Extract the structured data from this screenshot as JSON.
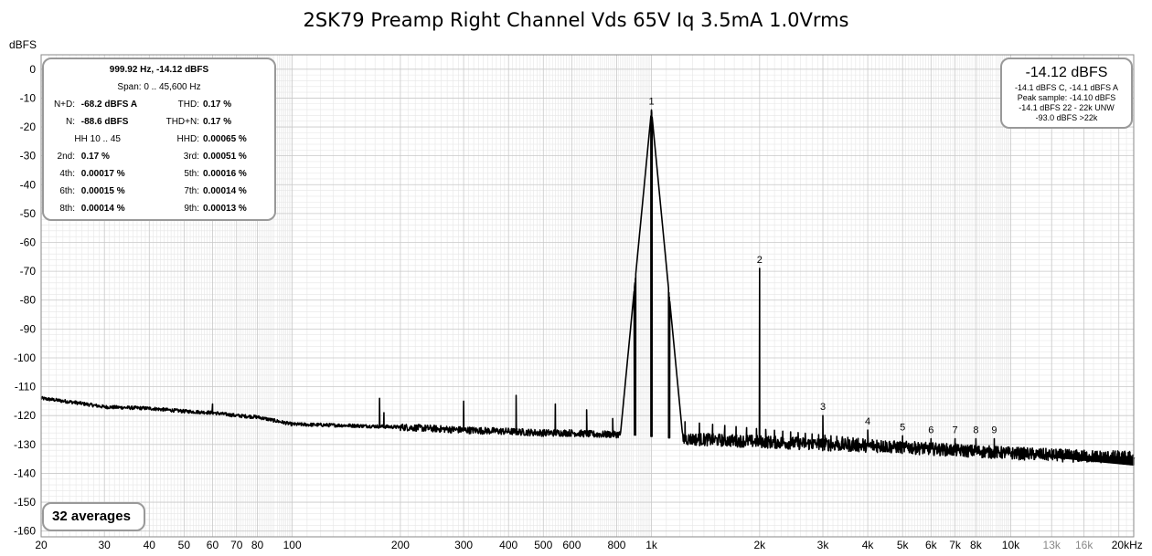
{
  "chart_data": {
    "type": "line",
    "title": "2SK79 Preamp Right Channel Vds 65V Iq 3.5mA 1.0Vrms",
    "ylabel": "dBFS",
    "xlabel": "",
    "xscale": "log",
    "xlim": [
      20,
      22000
    ],
    "ylim": [
      -162,
      5
    ],
    "grid": true,
    "y_ticks": [
      0,
      -10,
      -20,
      -30,
      -40,
      -50,
      -60,
      -70,
      -80,
      -90,
      -100,
      -110,
      -120,
      -130,
      -140,
      -150,
      -160
    ],
    "y_tick_labels": [
      "0",
      "-10",
      "-20",
      "-30",
      "-40",
      "-50",
      "-60",
      "-70",
      "-80",
      "-90",
      "-100",
      "-110",
      "-120",
      "-130",
      "-140",
      "-150",
      "-160"
    ],
    "x_ticks": [
      20,
      30,
      40,
      50,
      60,
      70,
      80,
      100,
      200,
      300,
      400,
      500,
      600,
      800,
      1000,
      2000,
      3000,
      4000,
      5000,
      6000,
      7000,
      8000,
      10000,
      13000,
      16000,
      20000
    ],
    "x_tick_labels": [
      "20",
      "30",
      "40",
      "50",
      "60",
      "70",
      "80",
      "100",
      "200",
      "300",
      "400",
      "500",
      "600",
      "800",
      "1k",
      "2k",
      "3k",
      "4k",
      "5k",
      "6k",
      "7k",
      "8k",
      "10k",
      "13k",
      "16k",
      "20kHz"
    ],
    "x_tick_gray": [
      "13k",
      "16k"
    ],
    "noise_floor": [
      [
        20,
        -114
      ],
      [
        25,
        -115.5
      ],
      [
        30,
        -117
      ],
      [
        40,
        -117.5
      ],
      [
        50,
        -118.5
      ],
      [
        60,
        -119
      ],
      [
        70,
        -120
      ],
      [
        80,
        -120.5
      ],
      [
        100,
        -123
      ],
      [
        150,
        -123.5
      ],
      [
        200,
        -124
      ],
      [
        300,
        -125
      ],
      [
        400,
        -125.5
      ],
      [
        500,
        -126
      ],
      [
        600,
        -126
      ],
      [
        700,
        -126.5
      ],
      [
        850,
        -126.5
      ],
      [
        1200,
        -128
      ],
      [
        2000,
        -129
      ],
      [
        3000,
        -130
      ],
      [
        4000,
        -130.5
      ],
      [
        5000,
        -131
      ],
      [
        7000,
        -132
      ],
      [
        10000,
        -133
      ],
      [
        15000,
        -134
      ],
      [
        22000,
        -134.5
      ]
    ],
    "spurs": [
      {
        "f": 60,
        "level": -116
      },
      {
        "f": 175,
        "level": -114
      },
      {
        "f": 180,
        "level": -119
      },
      {
        "f": 300,
        "level": -115
      },
      {
        "f": 420,
        "level": -113
      },
      {
        "f": 540,
        "level": -116
      },
      {
        "f": 660,
        "level": -118
      },
      {
        "f": 780,
        "level": -121
      },
      {
        "f": 900,
        "level": -121
      }
    ],
    "fundamental": {
      "f": 999.92,
      "level": -14.12
    },
    "harmonics": [
      {
        "label": "1",
        "f": 1000,
        "level": -14.12
      },
      {
        "label": "2",
        "f": 2000,
        "level": -69
      },
      {
        "label": "3",
        "f": 3000,
        "level": -120
      },
      {
        "label": "4",
        "f": 4000,
        "level": -125
      },
      {
        "label": "5",
        "f": 5000,
        "level": -127
      },
      {
        "label": "6",
        "f": 6000,
        "level": -128
      },
      {
        "label": "7",
        "f": 7000,
        "level": -128
      },
      {
        "label": "8",
        "f": 8000,
        "level": -128
      },
      {
        "label": "9",
        "f": 9000,
        "level": -128
      }
    ],
    "sidebands": {
      "spacing_hz": 120,
      "level": -121
    }
  },
  "stats": {
    "header": "999.92 Hz, -14.12 dBFS",
    "span": "Span: 0 .. 45,600 Hz",
    "rows": [
      {
        "l1": "N+D:",
        "v1": "-68.2 dBFS A",
        "l2": "THD:",
        "v2": "0.17 %"
      },
      {
        "l1": "N:",
        "v1": "-88.6 dBFS",
        "l2": "THD+N:",
        "v2": "0.17 %"
      },
      {
        "l1": "HH 10 .. 45",
        "v1": "",
        "l2": "HHD:",
        "v2": "0.00065 %"
      },
      {
        "l1": "2nd:",
        "v1": "0.17 %",
        "l2": "3rd:",
        "v2": "0.00051 %"
      },
      {
        "l1": "4th:",
        "v1": "0.00017 %",
        "l2": "5th:",
        "v2": "0.00016 %"
      },
      {
        "l1": "6th:",
        "v1": "0.00015 %",
        "l2": "7th:",
        "v2": "0.00014 %"
      },
      {
        "l1": "8th:",
        "v1": "0.00014 %",
        "l2": "9th:",
        "v2": "0.00013 %"
      }
    ]
  },
  "peak_box": {
    "main": "-14.12 dBFS",
    "lines": [
      "-14.1 dBFS C, -14.1 dBFS A",
      "Peak sample: -14.10 dBFS",
      "-14.1 dBFS 22 - 22k UNW",
      "-93.0 dBFS >22k"
    ]
  },
  "averages": "32 averages",
  "colors": {
    "trace": "#000000",
    "grid_major": "#c8c8c8",
    "grid_minor": "#e6e6e6",
    "box_border": "#999999"
  }
}
